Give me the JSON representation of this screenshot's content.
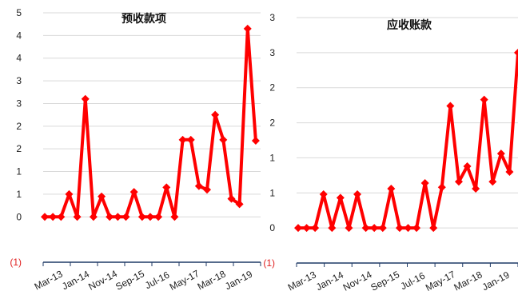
{
  "colors": {
    "series": "#ff0000",
    "grid": "#d9d9d9",
    "axis": "#1f3a66",
    "negative_label": "#e02020"
  },
  "chart_data": [
    {
      "type": "line",
      "title": "预收款项",
      "x_tick_labels": [
        "Mar-13",
        "Jan-14",
        "Nov-14",
        "Sep-15",
        "Jul-16",
        "May-17",
        "Mar-18",
        "Jan-19"
      ],
      "y_tick_labels": [
        "(1)",
        "0",
        "1",
        "1",
        "2",
        "2",
        "3",
        "3",
        "4",
        "4",
        "5"
      ],
      "y_tick_values": [
        -1,
        0,
        0.5,
        1,
        1.5,
        2,
        2.5,
        3,
        3.5,
        4,
        4.5
      ],
      "ylim": [
        -1,
        4.5
      ],
      "grid": true,
      "series": [
        {
          "values": [
            0,
            0,
            0,
            0.5,
            0,
            2.6,
            0,
            0.45,
            0,
            0,
            0,
            0.55,
            0,
            0,
            0,
            0.65,
            0,
            1.7,
            1.7,
            0.68,
            0.6,
            2.25,
            1.7,
            0.4,
            0.28,
            4.15,
            1.68
          ]
        }
      ]
    },
    {
      "type": "line",
      "title": "应收账款",
      "x_tick_labels": [
        "Mar-13",
        "Jan-14",
        "Nov-14",
        "Sep-15",
        "Jul-16",
        "May-17",
        "Mar-18",
        "Jan-19"
      ],
      "y_tick_labels": [
        "(1)",
        "0",
        "1",
        "1",
        "2",
        "2",
        "3",
        "3"
      ],
      "y_tick_values": [
        -0.5,
        0,
        0.5,
        1,
        1.5,
        2,
        2.5,
        3
      ],
      "ylim": [
        -0.5,
        3
      ],
      "grid": true,
      "series": [
        {
          "values": [
            0,
            0,
            0,
            0.48,
            0,
            0.43,
            0,
            0.48,
            0,
            0,
            0,
            0.56,
            0,
            0,
            0,
            0.64,
            0,
            0.58,
            1.74,
            0.66,
            0.88,
            0.56,
            1.83,
            0.66,
            1.06,
            0.8,
            2.5
          ]
        }
      ]
    }
  ]
}
